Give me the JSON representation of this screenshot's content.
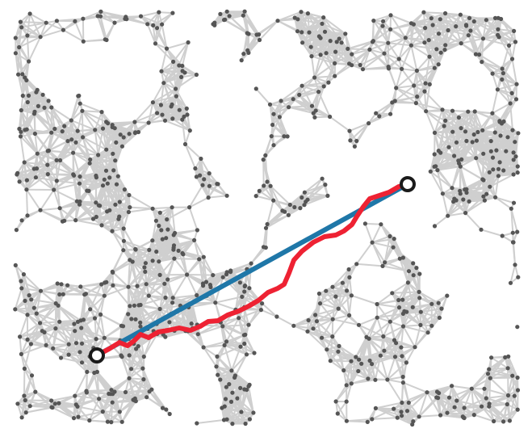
{
  "diagram": {
    "type": "random geometric graph with shortest path",
    "graph": {
      "node_count_estimate": 1000,
      "edge_color": "#cfcfcf",
      "node_color": "#555555"
    },
    "straight_line": {
      "color": "#1f77a8",
      "meaning": "euclidean-distance"
    },
    "shortest_path": {
      "color": "#ee2233",
      "meaning": "graph-shortest-path"
    },
    "endpoints": {
      "start": {
        "label": "",
        "icon": "ring-marker-icon"
      },
      "end": {
        "label": "",
        "icon": "ring-marker-icon"
      }
    }
  }
}
